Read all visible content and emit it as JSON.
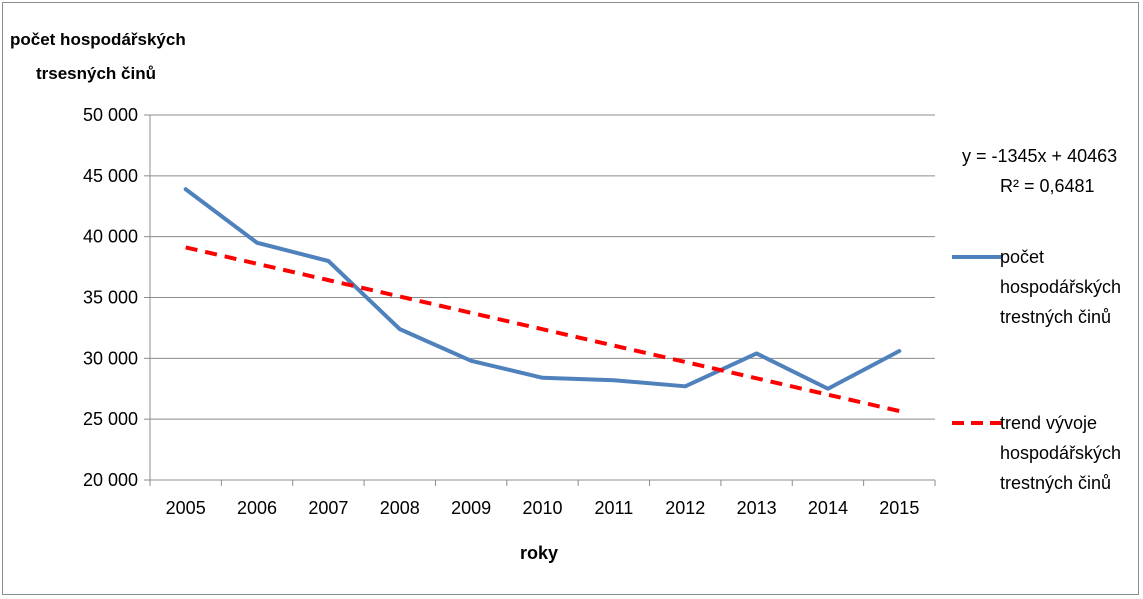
{
  "chart_data": {
    "type": "line",
    "ylabel_line1": "počet hospodářských",
    "ylabel_line2": "trsesných činů",
    "xlabel": "roky",
    "categories": [
      "2005",
      "2006",
      "2007",
      "2008",
      "2009",
      "2010",
      "2011",
      "2012",
      "2013",
      "2014",
      "2015"
    ],
    "ylim": [
      20000,
      50000
    ],
    "yticks": [
      "20 000",
      "25 000",
      "30 000",
      "35 000",
      "40 000",
      "45 000",
      "50 000"
    ],
    "ytick_values": [
      20000,
      25000,
      30000,
      35000,
      40000,
      45000,
      50000
    ],
    "grid": true,
    "series": [
      {
        "name": "počet hospodářských trestných činů",
        "name_lines": [
          "počet",
          "hospodářských",
          "trestných činů"
        ],
        "color": "#4f81bd",
        "style": "solid",
        "values": [
          43900,
          39500,
          38000,
          32400,
          29800,
          28400,
          28200,
          27700,
          30400,
          27500,
          30600
        ]
      },
      {
        "name": "trend vývoje hospodářských trestných činů",
        "name_lines": [
          "trend vývoje",
          "hospodářských",
          "trestných činů"
        ],
        "color": "#ff0000",
        "style": "dashed",
        "values": [
          39118,
          37773,
          36428,
          35083,
          33738,
          32393,
          31048,
          29703,
          28358,
          27013,
          25668
        ]
      }
    ],
    "trend_equation": "y = -1345x + 40463",
    "r_squared": "R² = 0,6481",
    "legend_position": "right"
  }
}
